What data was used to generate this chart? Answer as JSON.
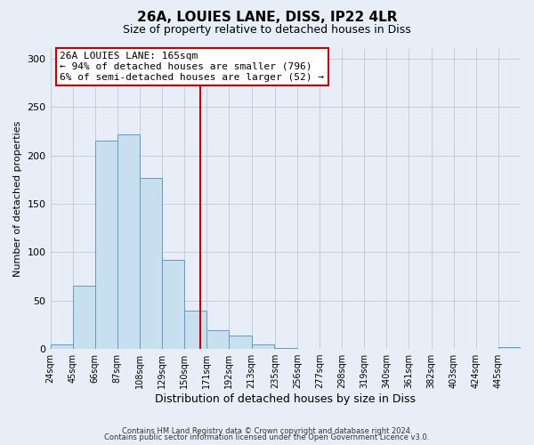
{
  "title": "26A, LOUIES LANE, DISS, IP22 4LR",
  "subtitle": "Size of property relative to detached houses in Diss",
  "xlabel": "Distribution of detached houses by size in Diss",
  "ylabel": "Number of detached properties",
  "bin_labels": [
    "24sqm",
    "45sqm",
    "66sqm",
    "87sqm",
    "108sqm",
    "129sqm",
    "150sqm",
    "171sqm",
    "192sqm",
    "213sqm",
    "235sqm",
    "256sqm",
    "277sqm",
    "298sqm",
    "319sqm",
    "340sqm",
    "361sqm",
    "382sqm",
    "403sqm",
    "424sqm",
    "445sqm"
  ],
  "bin_edges": [
    24,
    45,
    66,
    87,
    108,
    129,
    150,
    171,
    192,
    213,
    235,
    256,
    277,
    298,
    319,
    340,
    361,
    382,
    403,
    424,
    445
  ],
  "bar_heights": [
    5,
    65,
    215,
    222,
    177,
    92,
    40,
    19,
    14,
    5,
    1,
    0,
    0,
    0,
    0,
    0,
    0,
    0,
    0,
    0,
    2
  ],
  "bar_color": "#c8dff0",
  "bar_edge_color": "#6699bb",
  "property_size": 165,
  "vline_color": "#cc0000",
  "ylim": [
    0,
    310
  ],
  "yticks": [
    0,
    50,
    100,
    150,
    200,
    250,
    300
  ],
  "annotation_title": "26A LOUIES LANE: 165sqm",
  "annotation_line1": "← 94% of detached houses are smaller (796)",
  "annotation_line2": "6% of semi-detached houses are larger (52) →",
  "annotation_box_color": "#ffffff",
  "annotation_box_edge_color": "#cc0000",
  "footer1": "Contains HM Land Registry data © Crown copyright and database right 2024.",
  "footer2": "Contains public sector information licensed under the Open Government Licence v3.0.",
  "background_color": "#e8eef8",
  "grid_color": "#c0c8d8"
}
